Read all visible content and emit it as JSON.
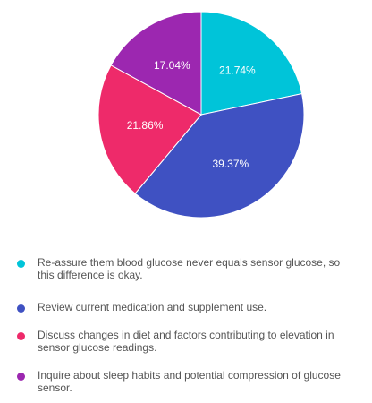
{
  "chart_data": {
    "type": "pie",
    "start_angle_deg": 0,
    "direction": "clockwise",
    "legend_position": "bottom",
    "slices": [
      {
        "label": "Re-assure them blood glucose never equals sensor glucose, so this difference is okay.",
        "value": 21.74,
        "display": "21.74%",
        "color": "#00c4d9"
      },
      {
        "label": "Review current medication and supplement use.",
        "value": 39.37,
        "display": "39.37%",
        "color": "#3f51c2"
      },
      {
        "label": "Discuss changes in diet and factors contributing to elevation in sensor glucose readings.",
        "value": 21.86,
        "display": "21.86%",
        "color": "#ee2a6a"
      },
      {
        "label": "Inquire about sleep habits and potential compression of glucose sensor.",
        "value": 17.04,
        "display": "17.04%",
        "color": "#9c27b0"
      }
    ]
  }
}
